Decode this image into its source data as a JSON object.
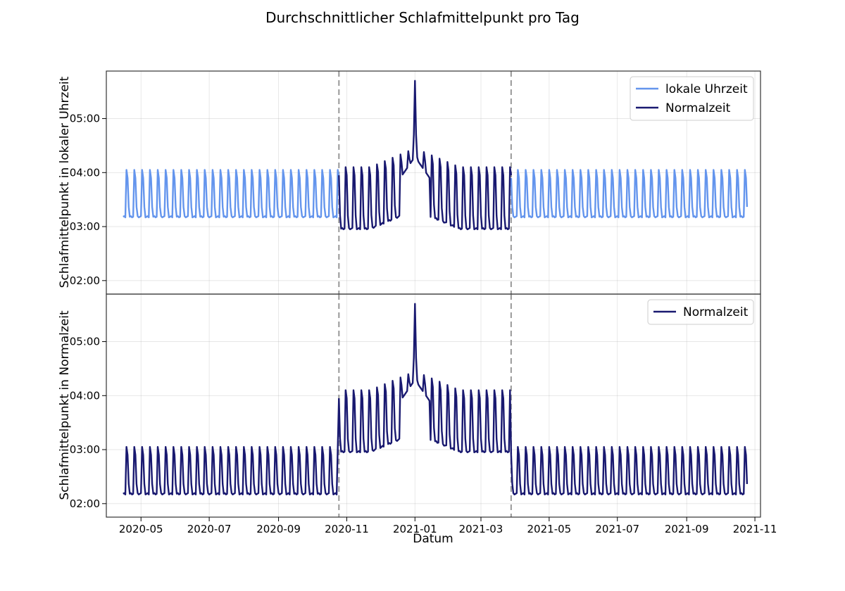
{
  "chart_data": {
    "type": "line",
    "title": "Durchschnittlicher Schlafmittelpunkt pro Tag",
    "xlabel": "Datum",
    "x_ticks": [
      "2020-05",
      "2020-07",
      "2020-09",
      "2020-11",
      "2021-01",
      "2021-03",
      "2021-05",
      "2021-07",
      "2021-09",
      "2021-11"
    ],
    "x_range": [
      "2020-03-31",
      "2021-11-06"
    ],
    "data_start": "2020-04-15",
    "data_end": "2021-10-25",
    "dst_end": "2020-10-25",
    "dst_start": "2021-03-28",
    "peak_date": "2021-01-01",
    "vertical_lines": [
      "2020-10-25",
      "2021-03-28"
    ],
    "panels": [
      {
        "ylabel": "Schlafmittelpunkt in lokaler Uhrzeit",
        "y_ticks": [
          "02:00",
          "03:00",
          "04:00",
          "05:00"
        ],
        "y_range_hours": [
          1.75,
          5.88
        ],
        "legend": {
          "position": "upper right",
          "entries": [
            "lokale Uhrzeit",
            "Normalzeit"
          ]
        },
        "series": [
          {
            "name": "lokale Uhrzeit",
            "color": "#6495ED",
            "segments": "dst_periods",
            "weekday_hours": 3.17,
            "weekend_hours": 4.05
          },
          {
            "name": "Normalzeit",
            "color": "#191970",
            "segments": "standard_period",
            "weekday_hours": 2.95,
            "weekend_hours": 4.1,
            "peak_hours": 5.7
          }
        ]
      },
      {
        "ylabel": "Schlafmittelpunkt in Normalzeit",
        "y_ticks": [
          "02:00",
          "03:00",
          "04:00",
          "05:00"
        ],
        "y_range_hours": [
          1.75,
          5.88
        ],
        "legend": {
          "position": "upper right",
          "entries": [
            "Normalzeit"
          ]
        },
        "series": [
          {
            "name": "Normalzeit",
            "color": "#191970",
            "segments": "all",
            "dst_weekday_hours": 2.17,
            "dst_weekend_hours": 3.05,
            "std_weekday_hours": 2.95,
            "std_weekend_hours": 4.1,
            "peak_hours": 5.7
          }
        ]
      }
    ]
  }
}
